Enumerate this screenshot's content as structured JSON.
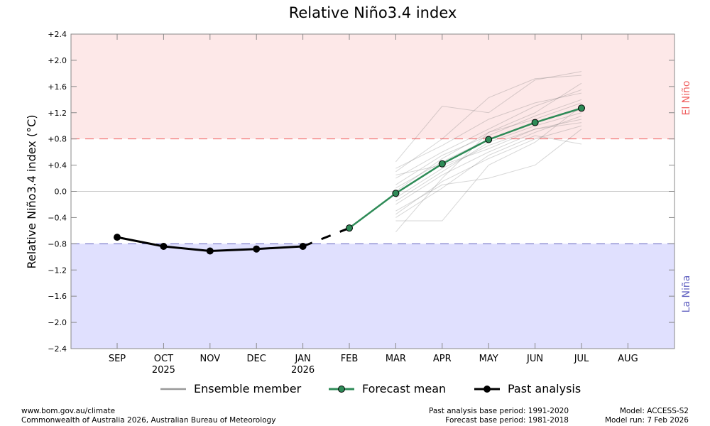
{
  "chart_data": {
    "type": "line",
    "title": "Relative Niño3.4 index",
    "ylabel": "Relative Niño3.4 index (°C)",
    "ylim": [
      -2.4,
      2.4
    ],
    "yticks": [
      "+2.4",
      "+2.0",
      "+1.6",
      "+1.2",
      "+0.8",
      "+0.4",
      "0.0",
      "−0.4",
      "−0.8",
      "−1.2",
      "−1.6",
      "−2.0",
      "−2.4"
    ],
    "categories": [
      "SEP",
      "OCT",
      "NOV",
      "DEC",
      "JAN",
      "FEB",
      "MAR",
      "APR",
      "MAY",
      "JUN",
      "JUL",
      "AUG"
    ],
    "year_labels": {
      "OCT": "2025",
      "JAN": "2026"
    },
    "thresholds": {
      "el_nino": 0.8,
      "la_nina": -0.8
    },
    "region_labels": {
      "el_nino": "El Niño",
      "la_nina": "La Niña"
    },
    "colors": {
      "el_nino_fill": "#fde8e8",
      "la_nina_fill": "#e0e0fe",
      "el_nino_line": "#f06060",
      "la_nina_line": "#6060c0",
      "el_nino_text": "#f06060",
      "la_nina_text": "#6060c0",
      "forecast": "#2e8b57",
      "past": "#000000",
      "ensemble": "#999999"
    },
    "past_analysis": {
      "name": "Past analysis",
      "months": [
        "SEP",
        "OCT",
        "NOV",
        "DEC",
        "JAN"
      ],
      "values": [
        -0.7,
        -0.84,
        -0.91,
        -0.88,
        -0.84
      ]
    },
    "forecast_mean": {
      "name": "Forecast mean",
      "months": [
        "FEB",
        "MAR",
        "APR",
        "MAY",
        "JUN",
        "JUL"
      ],
      "values": [
        -0.56,
        -0.03,
        0.42,
        0.79,
        1.05,
        1.27
      ]
    },
    "ensemble": {
      "name": "Ensemble member",
      "months": [
        "MAR",
        "APR",
        "MAY",
        "JUN",
        "JUL"
      ],
      "members": [
        [
          0.45,
          1.3,
          1.2,
          1.7,
          1.83
        ],
        [
          -0.45,
          -0.45,
          0.4,
          0.75,
          1.3
        ],
        [
          -0.62,
          0.2,
          0.9,
          1.2,
          1.65
        ],
        [
          0.3,
          0.8,
          1.43,
          1.72,
          1.77
        ],
        [
          -0.3,
          0.1,
          0.2,
          0.4,
          0.95
        ],
        [
          0.2,
          0.6,
          0.95,
          1.3,
          1.55
        ],
        [
          -0.1,
          0.35,
          0.7,
          0.95,
          1.1
        ],
        [
          0.1,
          0.55,
          0.85,
          1.15,
          1.4
        ],
        [
          -0.2,
          0.25,
          0.6,
          0.9,
          1.15
        ],
        [
          0.05,
          0.45,
          0.8,
          1.05,
          1.25
        ],
        [
          -0.4,
          0.05,
          0.55,
          0.85,
          0.72
        ],
        [
          0.35,
          0.7,
          1.1,
          1.35,
          1.5
        ],
        [
          -0.15,
          0.3,
          0.75,
          1.0,
          1.2
        ],
        [
          0.0,
          0.5,
          0.9,
          1.1,
          1.35
        ],
        [
          0.25,
          0.4,
          0.65,
          0.95,
          1.05
        ],
        [
          -0.35,
          0.15,
          0.5,
          0.8,
          1.0
        ]
      ]
    },
    "legend": [
      "Ensemble member",
      "Forecast mean",
      "Past analysis"
    ],
    "legend_placement": "bottom",
    "grid": false
  },
  "footer": {
    "url": "www.bom.gov.au/climate",
    "copyright": "Commonwealth of Australia 2026, Australian Bureau of Meteorology",
    "past_base": "Past analysis base period: 1991-2020",
    "forecast_base": "Forecast base period: 1981-2018",
    "model": "Model: ACCESS-S2",
    "model_run": "Model run: 7 Feb 2026"
  }
}
